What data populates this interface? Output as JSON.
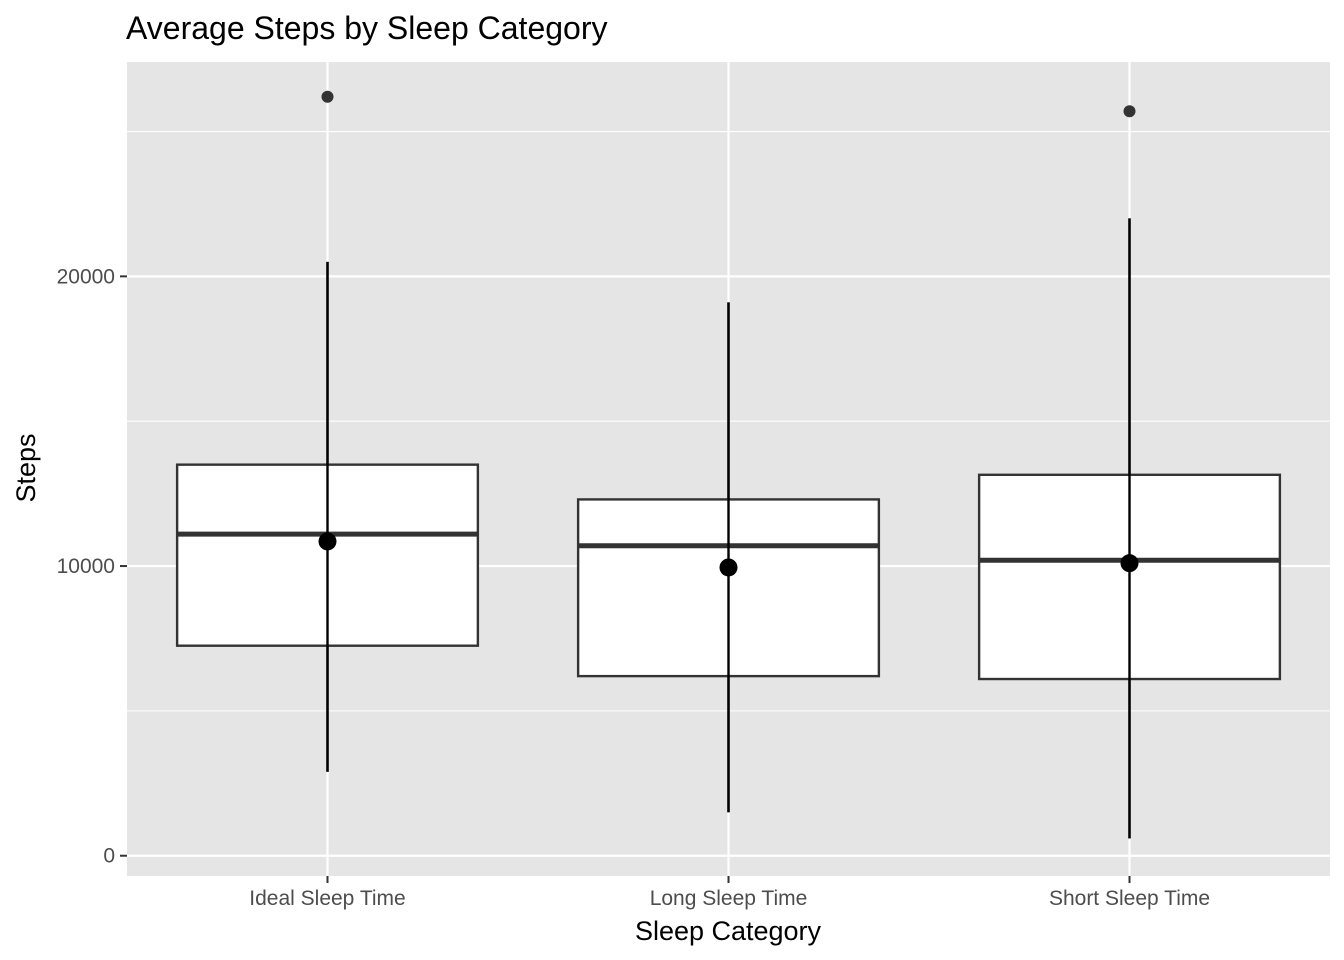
{
  "chart_data": {
    "type": "boxplot",
    "title": "Average Steps by Sleep Category",
    "xlabel": "Sleep Category",
    "ylabel": "Steps",
    "ylim": [
      -700,
      27400
    ],
    "yticks": [
      0,
      10000,
      20000
    ],
    "ytick_labels": [
      "0",
      "10000",
      "20000"
    ],
    "categories": [
      "Ideal Sleep Time",
      "Long Sleep Time",
      "Short Sleep Time"
    ],
    "boxes": [
      {
        "category": "Ideal Sleep Time",
        "q1": 7250,
        "median": 11100,
        "q3": 13500,
        "whisker_low": 2900,
        "whisker_high": 20500,
        "mean": 10850,
        "outliers": [
          26200
        ]
      },
      {
        "category": "Long Sleep Time",
        "q1": 6200,
        "median": 10700,
        "q3": 12300,
        "whisker_low": 1500,
        "whisker_high": 19100,
        "mean": 9950,
        "outliers": []
      },
      {
        "category": "Short Sleep Time",
        "q1": 6100,
        "median": 10200,
        "q3": 13150,
        "whisker_low": 600,
        "whisker_high": 22000,
        "mean": 10100,
        "outliers": [
          25700
        ]
      }
    ],
    "grid": true,
    "legend": "none",
    "colors": {
      "panel": "#e5e5e5",
      "grid": "#ffffff",
      "box_fill": "#ffffff",
      "box_line": "#333333",
      "point": "#000000",
      "tick_text": "#4d4d4d"
    }
  }
}
